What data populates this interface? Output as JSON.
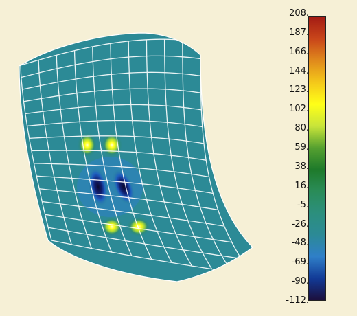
{
  "colorbar": {
    "ticks": [
      "208.",
      "187.",
      "166.",
      "144.",
      "123.",
      "102.",
      "80.",
      "59.",
      "38.",
      "16.",
      "-5.",
      "-26.",
      "-48.",
      "-69.",
      "-90.",
      "-112."
    ],
    "min": -112,
    "max": 208,
    "colors": [
      "#1c0f3c",
      "#123a96",
      "#2f7fc8",
      "#2c8a96",
      "#2c8f7d",
      "#2a8c58",
      "#1e7a2a",
      "#55a030",
      "#c8e43a",
      "#ffff18",
      "#f4c81a",
      "#e08a1c",
      "#c9461a",
      "#a41c14"
    ]
  },
  "field": {
    "background_value": 3,
    "mesh_color": "#ffffff",
    "hot_spot_value": 150,
    "cold_spot_value": -112
  }
}
